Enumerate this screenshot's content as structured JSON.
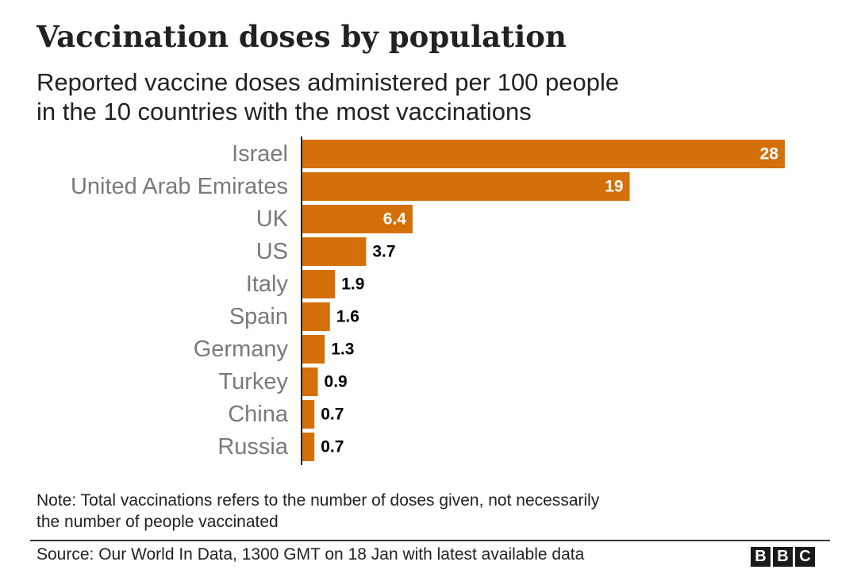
{
  "header": {
    "title": "Vaccination doses by population",
    "subtitle_line1": "Reported vaccine doses administered per 100 people",
    "subtitle_line2": "in the 10 countries with the most vaccinations"
  },
  "chart_data": {
    "type": "bar",
    "orientation": "horizontal",
    "title": "Vaccination doses by population",
    "subtitle": "Reported vaccine doses administered per 100 people in the 10 countries with the most vaccinations",
    "xlabel": "",
    "ylabel": "",
    "xlim": [
      0,
      28
    ],
    "grid": false,
    "categories": [
      "Israel",
      "United Arab Emirates",
      "UK",
      "US",
      "Italy",
      "Spain",
      "Germany",
      "Turkey",
      "China",
      "Russia"
    ],
    "values": [
      28,
      19,
      6.4,
      3.7,
      1.9,
      1.6,
      1.3,
      0.9,
      0.7,
      0.7
    ],
    "value_labels": [
      "28",
      "19",
      "6.4",
      "3.7",
      "1.9",
      "1.6",
      "1.3",
      "0.9",
      "0.7",
      "0.7"
    ],
    "bar_color": "#d4700a",
    "label_color_inside": "#ffffff",
    "label_color_outside": "#000000",
    "category_label_color": "#7a7a7a"
  },
  "note": {
    "line1": "Note: Total vaccinations refers to the number of doses given, not necessarily",
    "line2": "the number of people vaccinated"
  },
  "footer": {
    "source": "Source: Our World In Data, 1300 GMT on 18 Jan with latest available data",
    "logo_letters": [
      "B",
      "B",
      "C"
    ]
  }
}
